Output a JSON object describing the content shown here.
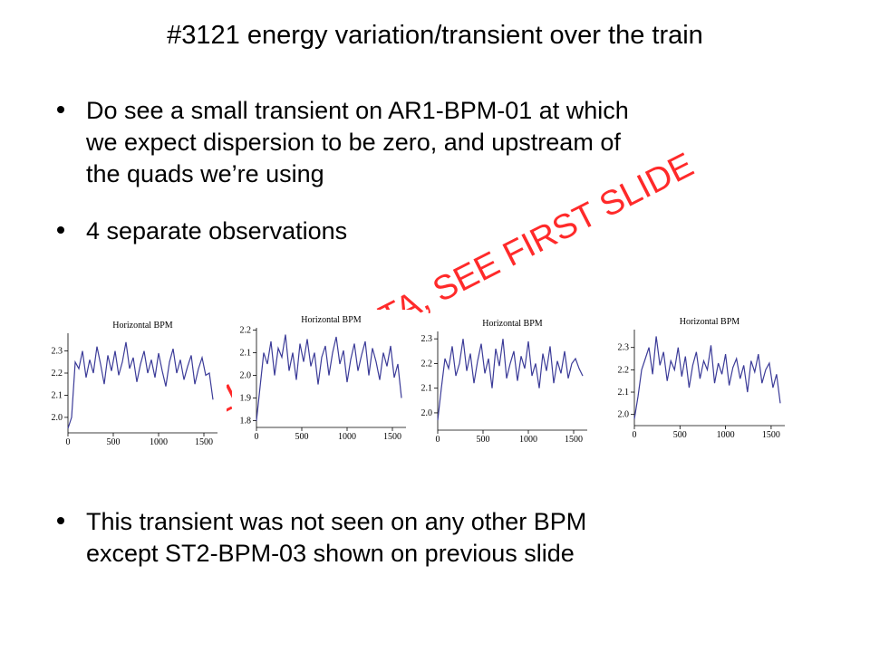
{
  "slide": {
    "title": "#3121 energy variation/transient over the train",
    "bullets": [
      [
        "Do see a small transient on AR1-BPM-01 at which",
        "we expect dispersion to be zero, and upstream of",
        "the quads we’re using"
      ],
      [
        "4 separate observations"
      ],
      [
        "This transient was not seen on any other BPM",
        "except ST2-BPM-03 shown on previous slide"
      ]
    ],
    "watermark": "UNRELIABLE DATA, SEE FIRST SLIDE"
  },
  "chart_data": [
    {
      "type": "line",
      "title": "Horizontal BPM",
      "color": "#3b3b98",
      "xlim": [
        0,
        1650
      ],
      "ylim": [
        1.93,
        2.38
      ],
      "xticks": [
        0,
        500,
        1000,
        1500
      ],
      "yticks": [
        {
          "value": 2,
          "label": "2.0"
        },
        2.1,
        2.2,
        2.3
      ],
      "x": [
        0,
        40,
        80,
        120,
        160,
        200,
        240,
        280,
        320,
        360,
        400,
        440,
        480,
        520,
        560,
        600,
        640,
        680,
        720,
        760,
        800,
        840,
        880,
        920,
        960,
        1000,
        1040,
        1080,
        1120,
        1160,
        1200,
        1240,
        1280,
        1320,
        1360,
        1400,
        1440,
        1480,
        1520,
        1560,
        1600
      ],
      "values": [
        1.95,
        2.0,
        2.25,
        2.22,
        2.3,
        2.18,
        2.26,
        2.2,
        2.32,
        2.24,
        2.15,
        2.28,
        2.21,
        2.3,
        2.19,
        2.25,
        2.34,
        2.22,
        2.27,
        2.16,
        2.24,
        2.3,
        2.2,
        2.26,
        2.18,
        2.29,
        2.21,
        2.14,
        2.25,
        2.31,
        2.2,
        2.26,
        2.17,
        2.23,
        2.28,
        2.15,
        2.22,
        2.27,
        2.19,
        2.2,
        2.08
      ]
    },
    {
      "type": "line",
      "title": "Horizontal BPM",
      "color": "#3b3b98",
      "xlim": [
        0,
        1650
      ],
      "ylim": [
        1.77,
        2.21
      ],
      "xticks": [
        0,
        500,
        1000,
        1500
      ],
      "yticks": [
        1.8,
        1.9,
        {
          "value": 2,
          "label": "2.0"
        },
        2.1,
        2.2
      ],
      "x": [
        0,
        40,
        80,
        120,
        160,
        200,
        240,
        280,
        320,
        360,
        400,
        440,
        480,
        520,
        560,
        600,
        640,
        680,
        720,
        760,
        800,
        840,
        880,
        920,
        960,
        1000,
        1040,
        1080,
        1120,
        1160,
        1200,
        1240,
        1280,
        1320,
        1360,
        1400,
        1440,
        1480,
        1520,
        1560,
        1600
      ],
      "values": [
        1.8,
        1.95,
        2.1,
        2.05,
        2.15,
        2.0,
        2.12,
        2.08,
        2.18,
        2.02,
        2.1,
        1.98,
        2.14,
        2.06,
        2.16,
        2.04,
        2.1,
        1.96,
        2.08,
        2.13,
        2.0,
        2.1,
        2.17,
        2.05,
        2.11,
        1.97,
        2.07,
        2.14,
        2.02,
        2.09,
        2.15,
        2.0,
        2.12,
        2.06,
        1.98,
        2.1,
        2.04,
        2.13,
        1.99,
        2.05,
        1.9
      ]
    },
    {
      "type": "line",
      "title": "Horizontal BPM",
      "color": "#3b3b98",
      "xlim": [
        0,
        1650
      ],
      "ylim": [
        1.93,
        2.33
      ],
      "xticks": [
        0,
        500,
        1000,
        1500
      ],
      "yticks": [
        {
          "value": 2,
          "label": "2.0"
        },
        2.1,
        2.2,
        2.3
      ],
      "x": [
        0,
        40,
        80,
        120,
        160,
        200,
        240,
        280,
        320,
        360,
        400,
        440,
        480,
        520,
        560,
        600,
        640,
        680,
        720,
        760,
        800,
        840,
        880,
        920,
        960,
        1000,
        1040,
        1080,
        1120,
        1160,
        1200,
        1240,
        1280,
        1320,
        1360,
        1400,
        1440,
        1480,
        1520,
        1560,
        1600
      ],
      "values": [
        1.97,
        2.1,
        2.22,
        2.18,
        2.27,
        2.15,
        2.2,
        2.3,
        2.17,
        2.24,
        2.12,
        2.21,
        2.28,
        2.16,
        2.22,
        2.1,
        2.26,
        2.19,
        2.3,
        2.14,
        2.2,
        2.25,
        2.13,
        2.23,
        2.18,
        2.29,
        2.15,
        2.2,
        2.1,
        2.24,
        2.17,
        2.27,
        2.12,
        2.21,
        2.16,
        2.25,
        2.14,
        2.2,
        2.22,
        2.18,
        2.15
      ]
    },
    {
      "type": "line",
      "title": "Horizontal BPM",
      "color": "#3b3b98",
      "xlim": [
        0,
        1650
      ],
      "ylim": [
        1.95,
        2.38
      ],
      "xticks": [
        0,
        500,
        1000,
        1500
      ],
      "yticks": [
        {
          "value": 2,
          "label": "2.0"
        },
        2.1,
        2.2,
        2.3
      ],
      "x": [
        0,
        40,
        80,
        120,
        160,
        200,
        240,
        280,
        320,
        360,
        400,
        440,
        480,
        520,
        560,
        600,
        640,
        680,
        720,
        760,
        800,
        840,
        880,
        920,
        960,
        1000,
        1040,
        1080,
        1120,
        1160,
        1200,
        1240,
        1280,
        1320,
        1360,
        1400,
        1440,
        1480,
        1520,
        1560,
        1600
      ],
      "values": [
        1.98,
        2.08,
        2.2,
        2.25,
        2.3,
        2.18,
        2.35,
        2.22,
        2.28,
        2.15,
        2.24,
        2.2,
        2.3,
        2.17,
        2.26,
        2.12,
        2.22,
        2.28,
        2.16,
        2.24,
        2.2,
        2.31,
        2.14,
        2.23,
        2.18,
        2.27,
        2.13,
        2.21,
        2.25,
        2.16,
        2.22,
        2.1,
        2.24,
        2.19,
        2.27,
        2.14,
        2.2,
        2.23,
        2.12,
        2.18,
        2.05
      ]
    }
  ]
}
